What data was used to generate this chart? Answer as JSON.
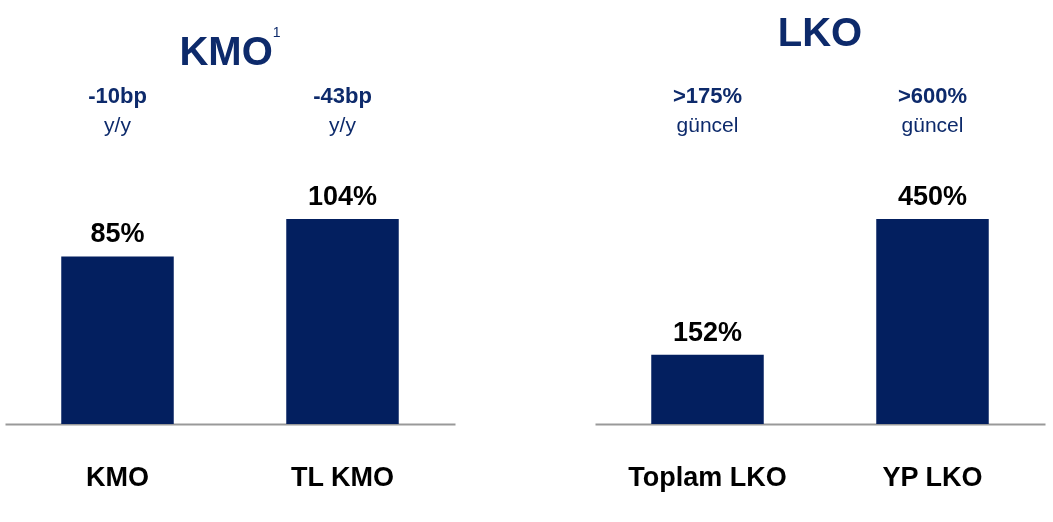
{
  "chart_data": [
    {
      "type": "bar",
      "title": "KMO$^{1}$",
      "categories": [
        "KMO",
        "TL KMO"
      ],
      "values": [
        85,
        104
      ],
      "color": "#031f5f",
      "value_labels": [
        "85%",
        "104%"
      ],
      "annotations": [
        "-10bp",
        "y/y",
        "-43bp",
        "y/y"
      ]
    },
    {
      "type": "bar",
      "title": "LKO",
      "categories": [
        "Toplam LKO",
        "YP LKO"
      ],
      "values": [
        152,
        450
      ],
      "color": "#031f5f",
      "value_labels": [
        "152%",
        "450%"
      ],
      "annotations": [
        ">175%",
        "güncel",
        ">600%",
        "güncel"
      ]
    }
  ]
}
